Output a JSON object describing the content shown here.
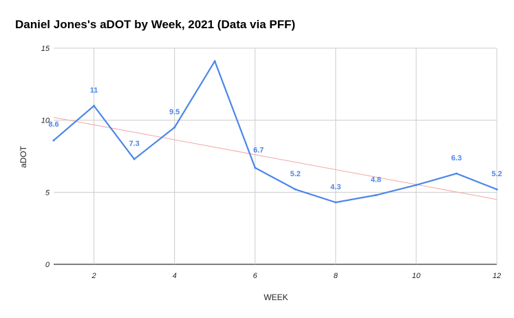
{
  "chart_data": {
    "type": "line",
    "title": "Daniel Jones's aDOT by Week, 2021 (Data via PFF)",
    "xlabel": "WEEK",
    "ylabel": "aDOT",
    "xlim": [
      1,
      12
    ],
    "ylim": [
      0,
      15
    ],
    "xticks": [
      "2",
      "4",
      "6",
      "8",
      "10",
      "12"
    ],
    "yticks": [
      "0",
      "5",
      "10",
      "15"
    ],
    "grid": true,
    "x": [
      1,
      2,
      3,
      4,
      5,
      6,
      7,
      8,
      9,
      10,
      11,
      12
    ],
    "series": [
      {
        "values": [
          8.6,
          11,
          7.3,
          9.5,
          14.1,
          6.7,
          5.2,
          4.3,
          4.8,
          5.5,
          6.3,
          5.2
        ],
        "data_labels": [
          "8.6",
          "11",
          "7.3",
          "9.5",
          "",
          "6.7",
          "5.2",
          "4.3",
          "4.8",
          "",
          "6.3",
          "5.2"
        ],
        "color": "#4a86e8"
      }
    ],
    "trendline": {
      "type": "linear",
      "start": [
        1,
        10.2
      ],
      "end": [
        12,
        4.5
      ],
      "color": "#f4a6a6"
    }
  }
}
